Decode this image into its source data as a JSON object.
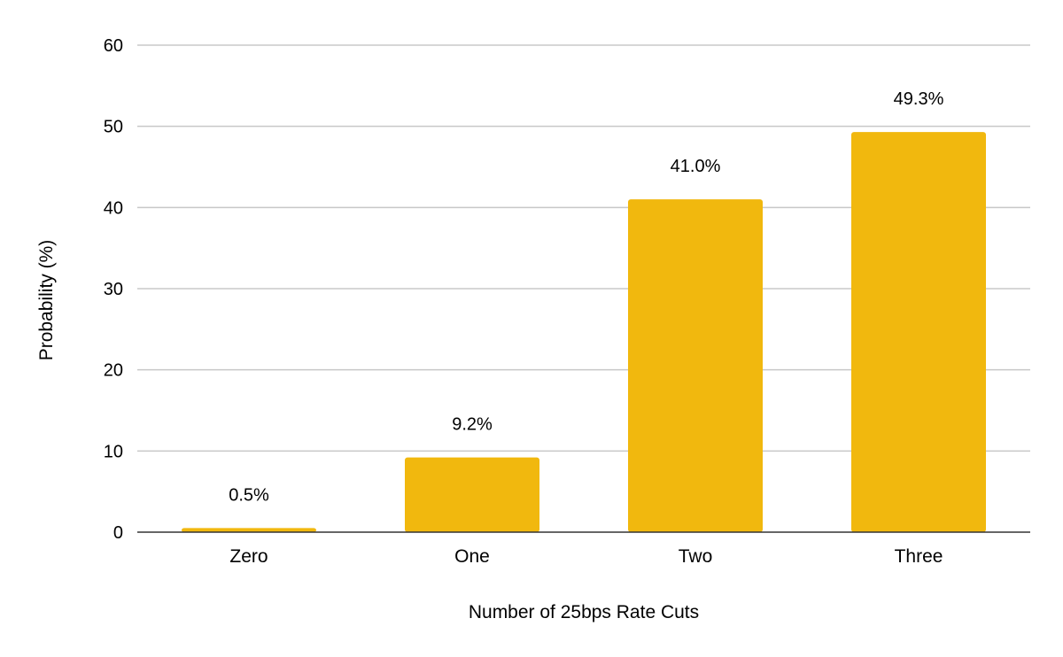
{
  "chart_data": {
    "type": "bar",
    "categories": [
      "Zero",
      "One",
      "Two",
      "Three"
    ],
    "values": [
      0.5,
      9.2,
      41.0,
      49.3
    ],
    "data_labels": [
      "0.5%",
      "9.2%",
      "41.0%",
      "49.3%"
    ],
    "xlabel": "Number of 25bps Rate Cuts",
    "ylabel": "Probability (%)",
    "ylim": [
      0,
      60
    ],
    "yticks": [
      0,
      10,
      20,
      30,
      40,
      50,
      60
    ],
    "grid": true,
    "legend": "none",
    "bar_color": "#F1B80E"
  }
}
